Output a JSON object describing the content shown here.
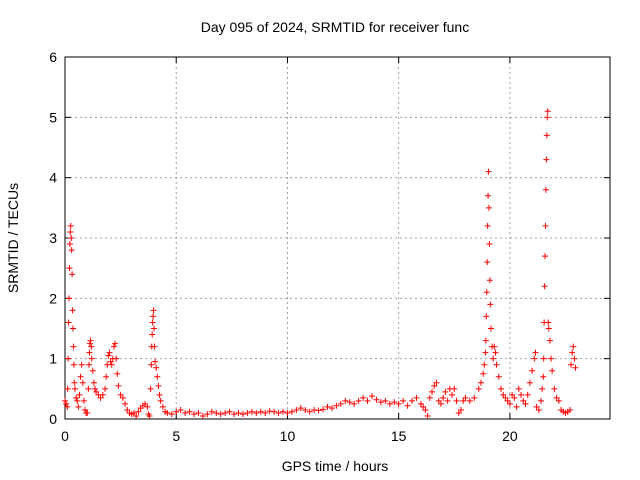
{
  "chart_data": {
    "type": "scatter",
    "title": "Day 095 of 2024, SRMTID for receiver func",
    "xlabel": "GPS time / hours",
    "ylabel": "SRMTID / TECUs",
    "xlim": [
      0,
      24.5
    ],
    "ylim": [
      0,
      6
    ],
    "xticks": [
      0,
      5,
      10,
      15,
      20
    ],
    "yticks": [
      0,
      1,
      2,
      3,
      4,
      5,
      6
    ],
    "xtick_labels": [
      "0",
      "5",
      "10",
      "15",
      "20"
    ],
    "ytick_labels": [
      "0",
      "1",
      "2",
      "3",
      "4",
      "5",
      "6"
    ],
    "grid": true,
    "marker": "+",
    "marker_color": "#ff0000",
    "series": [
      {
        "name": "SRMTID",
        "points": [
          [
            0.0,
            0.3
          ],
          [
            0.05,
            0.25
          ],
          [
            0.1,
            0.2
          ],
          [
            0.12,
            0.5
          ],
          [
            0.14,
            1.0
          ],
          [
            0.16,
            1.6
          ],
          [
            0.18,
            2.0
          ],
          [
            0.2,
            2.5
          ],
          [
            0.22,
            2.9
          ],
          [
            0.24,
            3.1
          ],
          [
            0.26,
            3.2
          ],
          [
            0.28,
            3.0
          ],
          [
            0.3,
            2.8
          ],
          [
            0.32,
            2.4
          ],
          [
            0.34,
            1.8
          ],
          [
            0.36,
            1.5
          ],
          [
            0.38,
            1.2
          ],
          [
            0.4,
            0.9
          ],
          [
            0.42,
            0.6
          ],
          [
            0.45,
            0.5
          ],
          [
            0.5,
            0.35
          ],
          [
            0.55,
            0.3
          ],
          [
            0.6,
            0.2
          ],
          [
            0.65,
            0.4
          ],
          [
            0.7,
            0.7
          ],
          [
            0.75,
            0.9
          ],
          [
            0.8,
            0.6
          ],
          [
            0.85,
            0.3
          ],
          [
            0.9,
            0.15
          ],
          [
            0.95,
            0.1
          ],
          [
            1.0,
            0.1
          ],
          [
            1.05,
            0.5
          ],
          [
            1.08,
            0.9
          ],
          [
            1.1,
            1.1
          ],
          [
            1.12,
            1.25
          ],
          [
            1.15,
            1.3
          ],
          [
            1.18,
            1.2
          ],
          [
            1.2,
            1.0
          ],
          [
            1.25,
            0.8
          ],
          [
            1.3,
            0.6
          ],
          [
            1.35,
            0.5
          ],
          [
            1.4,
            0.45
          ],
          [
            1.5,
            0.4
          ],
          [
            1.6,
            0.35
          ],
          [
            1.7,
            0.4
          ],
          [
            1.8,
            0.5
          ],
          [
            1.85,
            0.7
          ],
          [
            1.9,
            0.9
          ],
          [
            1.95,
            1.05
          ],
          [
            2.0,
            1.1
          ],
          [
            2.05,
            0.95
          ],
          [
            2.1,
            0.9
          ],
          [
            2.15,
            1.0
          ],
          [
            2.2,
            1.2
          ],
          [
            2.25,
            1.25
          ],
          [
            2.3,
            1.0
          ],
          [
            2.35,
            0.75
          ],
          [
            2.4,
            0.55
          ],
          [
            2.5,
            0.4
          ],
          [
            2.6,
            0.35
          ],
          [
            2.7,
            0.25
          ],
          [
            2.8,
            0.15
          ],
          [
            2.9,
            0.1
          ],
          [
            3.0,
            0.08
          ],
          [
            3.1,
            0.1
          ],
          [
            3.2,
            0.05
          ],
          [
            3.3,
            0.12
          ],
          [
            3.4,
            0.18
          ],
          [
            3.5,
            0.22
          ],
          [
            3.6,
            0.25
          ],
          [
            3.7,
            0.2
          ],
          [
            3.75,
            0.08
          ],
          [
            3.8,
            0.05
          ],
          [
            3.85,
            0.5
          ],
          [
            3.88,
            0.9
          ],
          [
            3.9,
            1.2
          ],
          [
            3.92,
            1.4
          ],
          [
            3.94,
            1.6
          ],
          [
            3.96,
            1.7
          ],
          [
            3.98,
            1.8
          ],
          [
            4.0,
            1.5
          ],
          [
            4.02,
            1.2
          ],
          [
            4.05,
            0.95
          ],
          [
            4.1,
            0.85
          ],
          [
            4.15,
            0.7
          ],
          [
            4.2,
            0.55
          ],
          [
            4.25,
            0.4
          ],
          [
            4.3,
            0.3
          ],
          [
            4.4,
            0.2
          ],
          [
            4.5,
            0.12
          ],
          [
            4.6,
            0.1
          ],
          [
            4.8,
            0.08
          ],
          [
            5.0,
            0.12
          ],
          [
            5.2,
            0.15
          ],
          [
            5.4,
            0.1
          ],
          [
            5.6,
            0.12
          ],
          [
            5.8,
            0.08
          ],
          [
            6.0,
            0.1
          ],
          [
            6.2,
            0.05
          ],
          [
            6.4,
            0.08
          ],
          [
            6.6,
            0.12
          ],
          [
            6.8,
            0.1
          ],
          [
            7.0,
            0.08
          ],
          [
            7.2,
            0.1
          ],
          [
            7.4,
            0.12
          ],
          [
            7.6,
            0.08
          ],
          [
            7.8,
            0.1
          ],
          [
            8.0,
            0.08
          ],
          [
            8.2,
            0.1
          ],
          [
            8.4,
            0.12
          ],
          [
            8.6,
            0.1
          ],
          [
            8.8,
            0.12
          ],
          [
            9.0,
            0.1
          ],
          [
            9.2,
            0.13
          ],
          [
            9.4,
            0.12
          ],
          [
            9.6,
            0.1
          ],
          [
            9.8,
            0.12
          ],
          [
            10.0,
            0.1
          ],
          [
            10.2,
            0.12
          ],
          [
            10.4,
            0.15
          ],
          [
            10.6,
            0.18
          ],
          [
            10.8,
            0.15
          ],
          [
            11.0,
            0.12
          ],
          [
            11.2,
            0.15
          ],
          [
            11.4,
            0.14
          ],
          [
            11.6,
            0.16
          ],
          [
            11.8,
            0.2
          ],
          [
            12.0,
            0.18
          ],
          [
            12.2,
            0.22
          ],
          [
            12.4,
            0.25
          ],
          [
            12.6,
            0.3
          ],
          [
            12.8,
            0.28
          ],
          [
            13.0,
            0.25
          ],
          [
            13.2,
            0.3
          ],
          [
            13.4,
            0.35
          ],
          [
            13.6,
            0.3
          ],
          [
            13.8,
            0.38
          ],
          [
            14.0,
            0.32
          ],
          [
            14.2,
            0.28
          ],
          [
            14.4,
            0.3
          ],
          [
            14.6,
            0.25
          ],
          [
            14.8,
            0.28
          ],
          [
            15.0,
            0.25
          ],
          [
            15.2,
            0.3
          ],
          [
            15.4,
            0.22
          ],
          [
            15.6,
            0.3
          ],
          [
            15.8,
            0.35
          ],
          [
            16.0,
            0.25
          ],
          [
            16.1,
            0.2
          ],
          [
            16.2,
            0.15
          ],
          [
            16.3,
            0.05
          ],
          [
            16.4,
            0.35
          ],
          [
            16.5,
            0.45
          ],
          [
            16.6,
            0.55
          ],
          [
            16.7,
            0.6
          ],
          [
            16.8,
            0.3
          ],
          [
            16.9,
            0.25
          ],
          [
            17.0,
            0.35
          ],
          [
            17.1,
            0.45
          ],
          [
            17.2,
            0.3
          ],
          [
            17.3,
            0.5
          ],
          [
            17.4,
            0.4
          ],
          [
            17.5,
            0.5
          ],
          [
            17.6,
            0.3
          ],
          [
            17.7,
            0.1
          ],
          [
            17.8,
            0.15
          ],
          [
            17.9,
            0.3
          ],
          [
            18.0,
            0.35
          ],
          [
            18.2,
            0.3
          ],
          [
            18.4,
            0.35
          ],
          [
            18.6,
            0.5
          ],
          [
            18.7,
            0.6
          ],
          [
            18.8,
            0.75
          ],
          [
            18.85,
            0.9
          ],
          [
            18.9,
            1.1
          ],
          [
            18.92,
            1.3
          ],
          [
            18.94,
            1.7
          ],
          [
            18.96,
            2.1
          ],
          [
            18.98,
            2.6
          ],
          [
            19.0,
            3.2
          ],
          [
            19.02,
            3.7
          ],
          [
            19.04,
            4.1
          ],
          [
            19.06,
            3.5
          ],
          [
            19.08,
            2.9
          ],
          [
            19.1,
            2.3
          ],
          [
            19.12,
            1.9
          ],
          [
            19.15,
            1.5
          ],
          [
            19.2,
            1.2
          ],
          [
            19.25,
            1.0
          ],
          [
            19.3,
            1.2
          ],
          [
            19.35,
            1.1
          ],
          [
            19.4,
            0.9
          ],
          [
            19.5,
            0.7
          ],
          [
            19.6,
            0.5
          ],
          [
            19.7,
            0.4
          ],
          [
            19.8,
            0.35
          ],
          [
            19.9,
            0.3
          ],
          [
            20.0,
            0.25
          ],
          [
            20.1,
            0.4
          ],
          [
            20.2,
            0.35
          ],
          [
            20.3,
            0.2
          ],
          [
            20.4,
            0.5
          ],
          [
            20.5,
            0.4
          ],
          [
            20.6,
            0.3
          ],
          [
            20.7,
            0.25
          ],
          [
            20.8,
            0.4
          ],
          [
            20.9,
            0.6
          ],
          [
            21.0,
            0.8
          ],
          [
            21.1,
            1.0
          ],
          [
            21.15,
            1.1
          ],
          [
            21.2,
            0.2
          ],
          [
            21.3,
            0.15
          ],
          [
            21.4,
            0.3
          ],
          [
            21.45,
            0.5
          ],
          [
            21.5,
            0.7
          ],
          [
            21.52,
            1.0
          ],
          [
            21.54,
            1.6
          ],
          [
            21.56,
            2.2
          ],
          [
            21.58,
            2.7
          ],
          [
            21.6,
            3.2
          ],
          [
            21.62,
            3.8
          ],
          [
            21.64,
            4.3
          ],
          [
            21.66,
            4.7
          ],
          [
            21.68,
            5.0
          ],
          [
            21.7,
            5.1
          ],
          [
            21.72,
            1.6
          ],
          [
            21.75,
            1.5
          ],
          [
            21.8,
            1.3
          ],
          [
            21.85,
            1.0
          ],
          [
            21.9,
            0.8
          ],
          [
            22.0,
            0.5
          ],
          [
            22.1,
            0.35
          ],
          [
            22.2,
            0.3
          ],
          [
            22.3,
            0.15
          ],
          [
            22.4,
            0.12
          ],
          [
            22.5,
            0.1
          ],
          [
            22.6,
            0.12
          ],
          [
            22.7,
            0.15
          ],
          [
            22.75,
            0.9
          ],
          [
            22.8,
            1.1
          ],
          [
            22.85,
            1.2
          ],
          [
            22.9,
            1.0
          ],
          [
            22.95,
            0.85
          ]
        ]
      }
    ]
  }
}
